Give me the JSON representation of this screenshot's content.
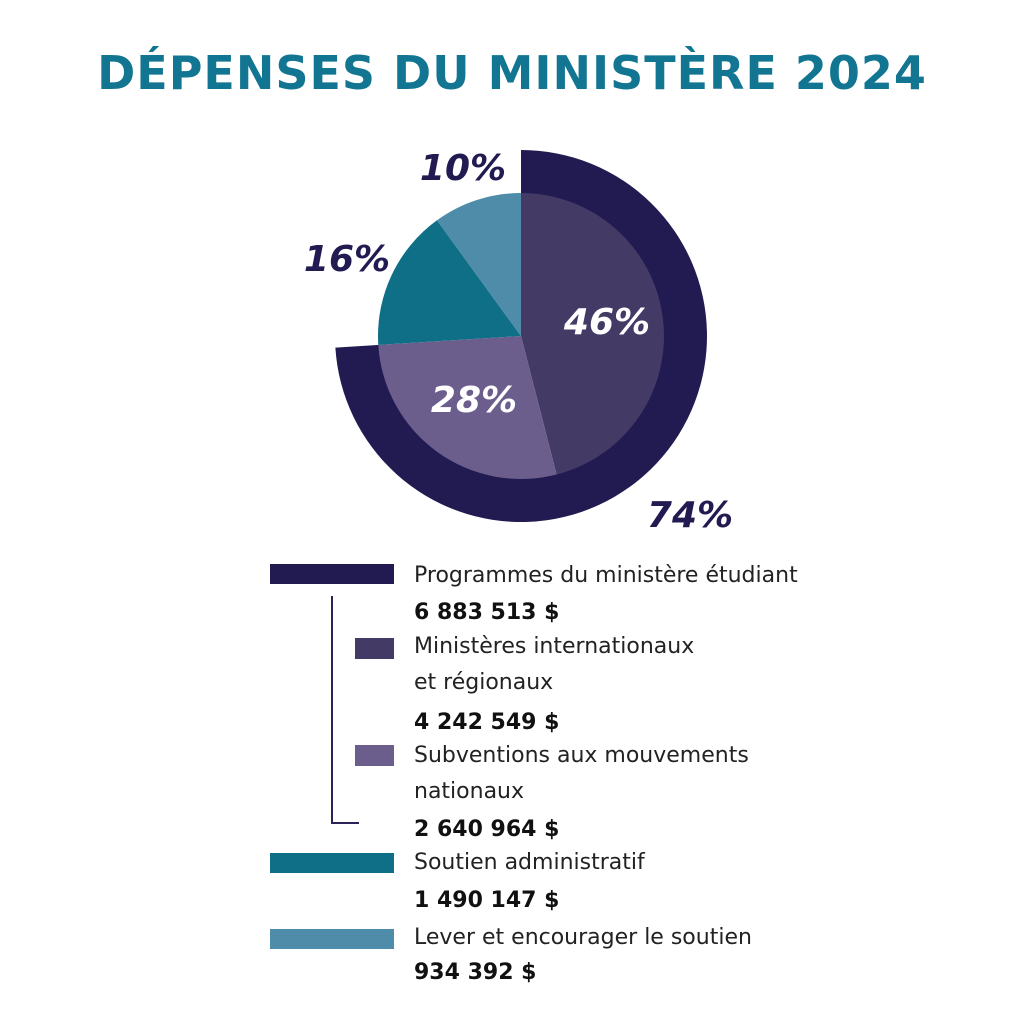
{
  "title": "DÉPENSES DU MINISTÈRE 2024",
  "chart_data": {
    "type": "pie",
    "title": "DÉPENSES DU MINISTÈRE 2024",
    "slices": [
      {
        "label": "Ministères internationaux et régionaux",
        "value": 46,
        "display": "46%",
        "amount": "4 242 549 $",
        "color": "#433a66"
      },
      {
        "label": "Subventions aux mouvements nationaux",
        "value": 28,
        "display": "28%",
        "amount": "2 640 964 $",
        "color": "#6b5e8c"
      },
      {
        "label": "Soutien administratif",
        "value": 16,
        "display": "16%",
        "amount": "1 490 147 $",
        "color": "#0f6f87"
      },
      {
        "label": "Lever et encourager le soutien",
        "value": 10,
        "display": "10%",
        "amount": "934 392 $",
        "color": "#4e8ca9"
      }
    ],
    "group_ring": {
      "label": "Programmes du ministère étudiant",
      "value": 74,
      "display": "74%",
      "amount": "6 883 513 $",
      "color": "#211b52"
    }
  },
  "legend": [
    {
      "label_lines": [
        "Programmes du ministère étudiant"
      ],
      "amount": "6 883 513 $",
      "color": "#211b52"
    },
    {
      "label_lines": [
        "Ministères internationaux",
        "et régionaux"
      ],
      "amount": "4 242 549 $",
      "color": "#433a66"
    },
    {
      "label_lines": [
        "Subventions aux mouvements",
        "nationaux"
      ],
      "amount": "2 640 964 $",
      "color": "#6b5e8c"
    },
    {
      "label_lines": [
        "Soutien administratif"
      ],
      "amount": "1 490 147 $",
      "color": "#0f6f87"
    },
    {
      "label_lines": [
        "Lever et encourager le soutien"
      ],
      "amount": "934 392 $",
      "color": "#4e8ca9"
    }
  ]
}
